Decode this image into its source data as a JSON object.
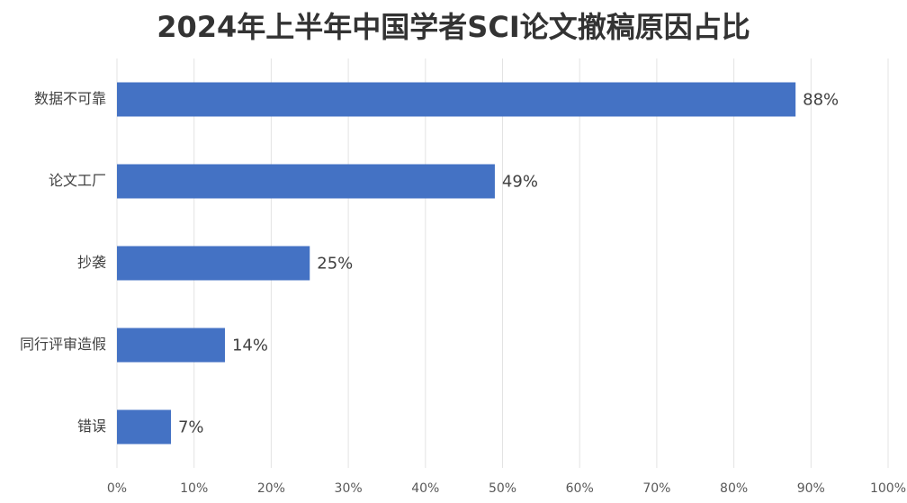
{
  "chart_data": {
    "type": "bar",
    "orientation": "horizontal",
    "title": "2024年上半年中国学者SCI论文撤稿原因占比",
    "categories": [
      "数据不可靠",
      "论文工厂",
      "抄袭",
      "同行评审造假",
      "错误"
    ],
    "values": [
      88,
      49,
      25,
      14,
      7
    ],
    "value_labels": [
      "88%",
      "49%",
      "25%",
      "14%",
      "7%"
    ],
    "color": "#4472c4",
    "xlim": [
      0,
      100
    ],
    "xticks": [
      {
        "value": 0,
        "label": "0%"
      },
      {
        "value": 10,
        "label": "10%"
      },
      {
        "value": 20,
        "label": "20%"
      },
      {
        "value": 30,
        "label": "30%"
      },
      {
        "value": 40,
        "label": "40%"
      },
      {
        "value": 50,
        "label": "50%"
      },
      {
        "value": 60,
        "label": "60%"
      },
      {
        "value": 70,
        "label": "70%"
      },
      {
        "value": 80,
        "label": "80%"
      },
      {
        "value": 90,
        "label": "90%"
      },
      {
        "value": 100,
        "label": "100%"
      }
    ],
    "grid": true
  }
}
